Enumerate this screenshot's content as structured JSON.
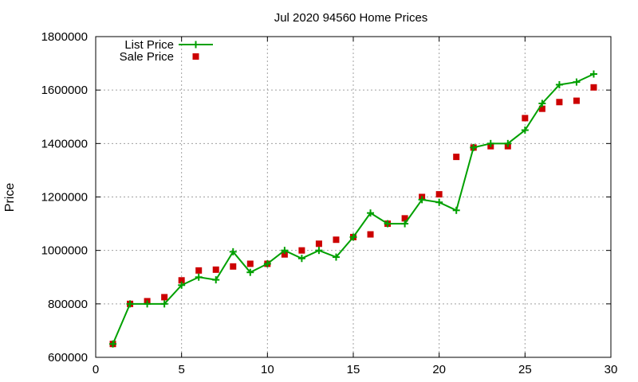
{
  "chart_data": {
    "type": "line",
    "title": "Jul 2020 94560 Home Prices",
    "xlabel": "",
    "ylabel": "Price",
    "xlim": [
      0,
      30
    ],
    "ylim": [
      600000,
      1800000
    ],
    "xticks": [
      0,
      5,
      10,
      15,
      20,
      25,
      30
    ],
    "yticks": [
      600000,
      800000,
      1000000,
      1200000,
      1400000,
      1600000,
      1800000
    ],
    "grid": true,
    "legend_position": "top-left",
    "series": [
      {
        "name": "List Price",
        "style": "line-with-plus-markers",
        "color": "#00a000",
        "x": [
          1,
          2,
          3,
          4,
          5,
          6,
          7,
          8,
          9,
          10,
          11,
          12,
          13,
          14,
          15,
          16,
          17,
          18,
          19,
          20,
          21,
          22,
          23,
          24,
          25,
          26,
          27,
          28,
          29
        ],
        "y": [
          650000,
          800000,
          800000,
          800000,
          870000,
          900000,
          890000,
          995000,
          918000,
          950000,
          1000000,
          970000,
          1000000,
          975000,
          1050000,
          1140000,
          1100000,
          1100000,
          1190000,
          1180000,
          1150000,
          1385000,
          1400000,
          1400000,
          1450000,
          1550000,
          1620000,
          1630000,
          1660000
        ]
      },
      {
        "name": "Sale Price",
        "style": "square-markers",
        "color": "#cc0000",
        "x": [
          1,
          2,
          3,
          4,
          5,
          6,
          7,
          8,
          9,
          10,
          11,
          12,
          13,
          14,
          15,
          16,
          17,
          18,
          19,
          20,
          21,
          22,
          23,
          24,
          25,
          26,
          27,
          28,
          29
        ],
        "y": [
          650000,
          800000,
          810000,
          825000,
          888000,
          925000,
          928000,
          940000,
          950000,
          950000,
          985000,
          1000000,
          1025000,
          1040000,
          1050000,
          1060000,
          1100000,
          1120000,
          1200000,
          1210000,
          1350000,
          1385000,
          1390000,
          1390000,
          1495000,
          1530000,
          1555000,
          1560000,
          1610000
        ]
      }
    ]
  }
}
